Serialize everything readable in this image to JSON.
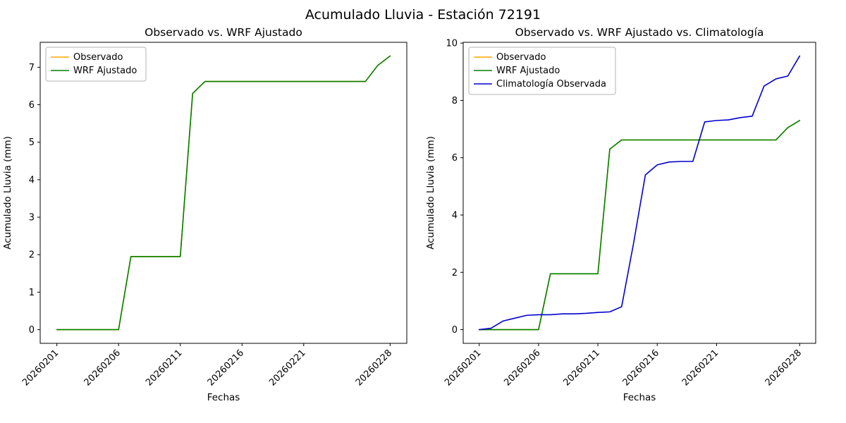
{
  "figure_title": "Acumulado Lluvia - Estación 72191",
  "chart_data": [
    {
      "type": "line",
      "title": "Observado vs. WRF Ajustado",
      "xlabel": "Fechas",
      "ylabel": "Acumulado Lluvia (mm)",
      "legend_position": "upper left",
      "grid": false,
      "x": [
        1,
        2,
        3,
        4,
        5,
        6,
        7,
        8,
        9,
        10,
        11,
        12,
        13,
        14,
        15,
        16,
        17,
        18,
        19,
        20,
        21,
        22,
        23,
        24,
        25,
        26,
        27,
        28
      ],
      "xlim": [
        -0.35,
        29.35
      ],
      "ylim": [
        -0.365,
        7.665
      ],
      "y_ticks": [
        0,
        1,
        2,
        3,
        4,
        5,
        6,
        7
      ],
      "x_tick_positions": [
        1,
        6,
        11,
        16,
        21,
        28
      ],
      "x_tick_labels": [
        "20260201",
        "20260206",
        "20260211",
        "20260216",
        "20260221",
        "20260228"
      ],
      "series": [
        {
          "name": "Observado",
          "color": "#ffa500",
          "values": [
            0,
            0,
            0,
            0,
            0,
            0,
            1.95,
            1.95,
            1.95,
            1.95,
            1.95,
            6.3,
            6.62,
            6.62,
            6.62,
            6.62,
            6.62,
            6.62,
            6.62,
            6.62,
            6.62,
            6.62,
            6.62,
            6.62,
            6.62,
            6.62,
            7.05,
            7.3
          ]
        },
        {
          "name": "WRF Ajustado",
          "color": "#008000",
          "values": [
            0,
            0,
            0,
            0,
            0,
            0,
            1.95,
            1.95,
            1.95,
            1.95,
            1.95,
            6.3,
            6.62,
            6.62,
            6.62,
            6.62,
            6.62,
            6.62,
            6.62,
            6.62,
            6.62,
            6.62,
            6.62,
            6.62,
            6.62,
            6.62,
            7.05,
            7.3
          ]
        }
      ]
    },
    {
      "type": "line",
      "title": "Observado vs. WRF Ajustado vs. Climatología",
      "xlabel": "Fechas",
      "ylabel": "Acumulado Lluvia (mm)",
      "legend_position": "upper left",
      "grid": false,
      "x": [
        1,
        2,
        3,
        4,
        5,
        6,
        7,
        8,
        9,
        10,
        11,
        12,
        13,
        14,
        15,
        16,
        17,
        18,
        19,
        20,
        21,
        22,
        23,
        24,
        25,
        26,
        27,
        28
      ],
      "xlim": [
        -0.35,
        29.35
      ],
      "ylim": [
        -0.478,
        10.028
      ],
      "y_ticks": [
        0,
        2,
        4,
        6,
        8,
        10
      ],
      "x_tick_positions": [
        1,
        6,
        11,
        16,
        21,
        28
      ],
      "x_tick_labels": [
        "20260201",
        "20260206",
        "20260211",
        "20260216",
        "20260221",
        "20260228"
      ],
      "series": [
        {
          "name": "Observado",
          "color": "#ffa500",
          "values": [
            0,
            0,
            0,
            0,
            0,
            0,
            1.95,
            1.95,
            1.95,
            1.95,
            1.95,
            6.3,
            6.62,
            6.62,
            6.62,
            6.62,
            6.62,
            6.62,
            6.62,
            6.62,
            6.62,
            6.62,
            6.62,
            6.62,
            6.62,
            6.62,
            7.05,
            7.3
          ]
        },
        {
          "name": "WRF Ajustado",
          "color": "#008000",
          "values": [
            0,
            0,
            0,
            0,
            0,
            0,
            1.95,
            1.95,
            1.95,
            1.95,
            1.95,
            6.3,
            6.62,
            6.62,
            6.62,
            6.62,
            6.62,
            6.62,
            6.62,
            6.62,
            6.62,
            6.62,
            6.62,
            6.62,
            6.62,
            6.62,
            7.05,
            7.3
          ]
        },
        {
          "name": "Climatología Observada",
          "color": "#0000cd",
          "values": [
            0,
            0.05,
            0.3,
            0.4,
            0.5,
            0.52,
            0.52,
            0.55,
            0.55,
            0.57,
            0.6,
            0.62,
            0.8,
            3.0,
            5.4,
            5.75,
            5.85,
            5.87,
            5.87,
            7.25,
            7.3,
            7.32,
            7.4,
            7.45,
            8.5,
            8.75,
            8.85,
            9.55
          ]
        }
      ]
    }
  ]
}
